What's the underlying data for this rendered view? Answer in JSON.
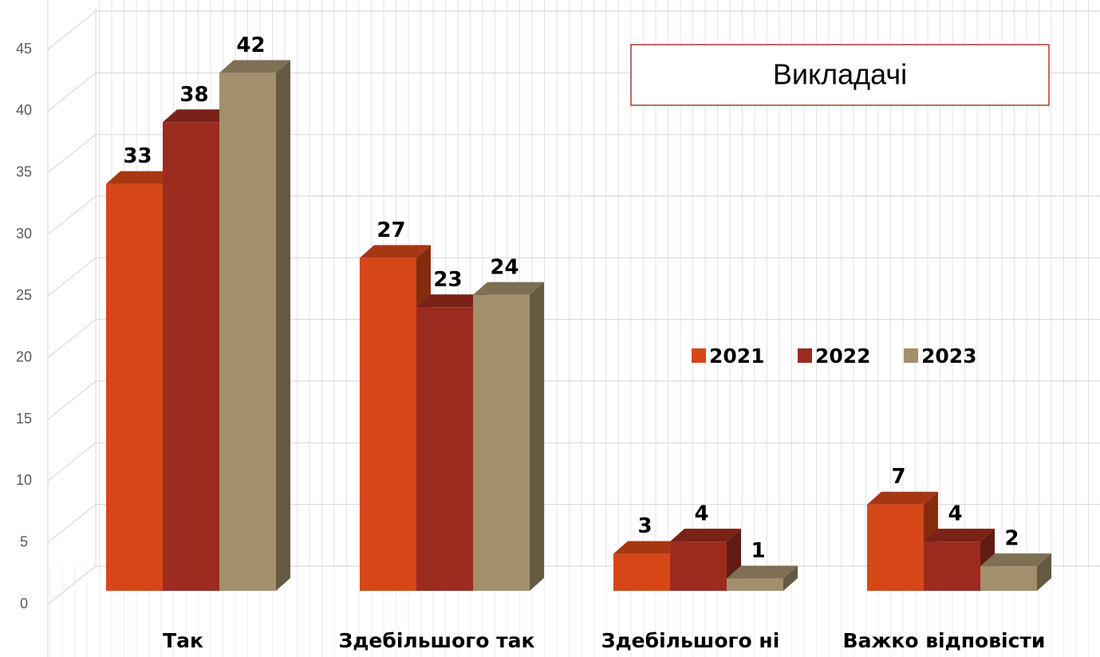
{
  "chart_data": {
    "type": "bar3d",
    "title": "Викладачі",
    "categories": [
      "Так",
      "Здебільшого так",
      "Здебільшого ні",
      "Важко відповісти"
    ],
    "series": [
      {
        "name": "2021",
        "color": "#d64718",
        "values": [
          33,
          27,
          3,
          7
        ]
      },
      {
        "name": "2022",
        "color": "#9c2b1f",
        "values": [
          38,
          23,
          4,
          4
        ]
      },
      {
        "name": "2023",
        "color": "#a38f6c",
        "values": [
          42,
          24,
          1,
          2
        ]
      }
    ],
    "ylim": [
      0,
      45
    ],
    "yticks": [
      0,
      5,
      10,
      15,
      20,
      25,
      30,
      35,
      40,
      45
    ],
    "grid": true
  }
}
